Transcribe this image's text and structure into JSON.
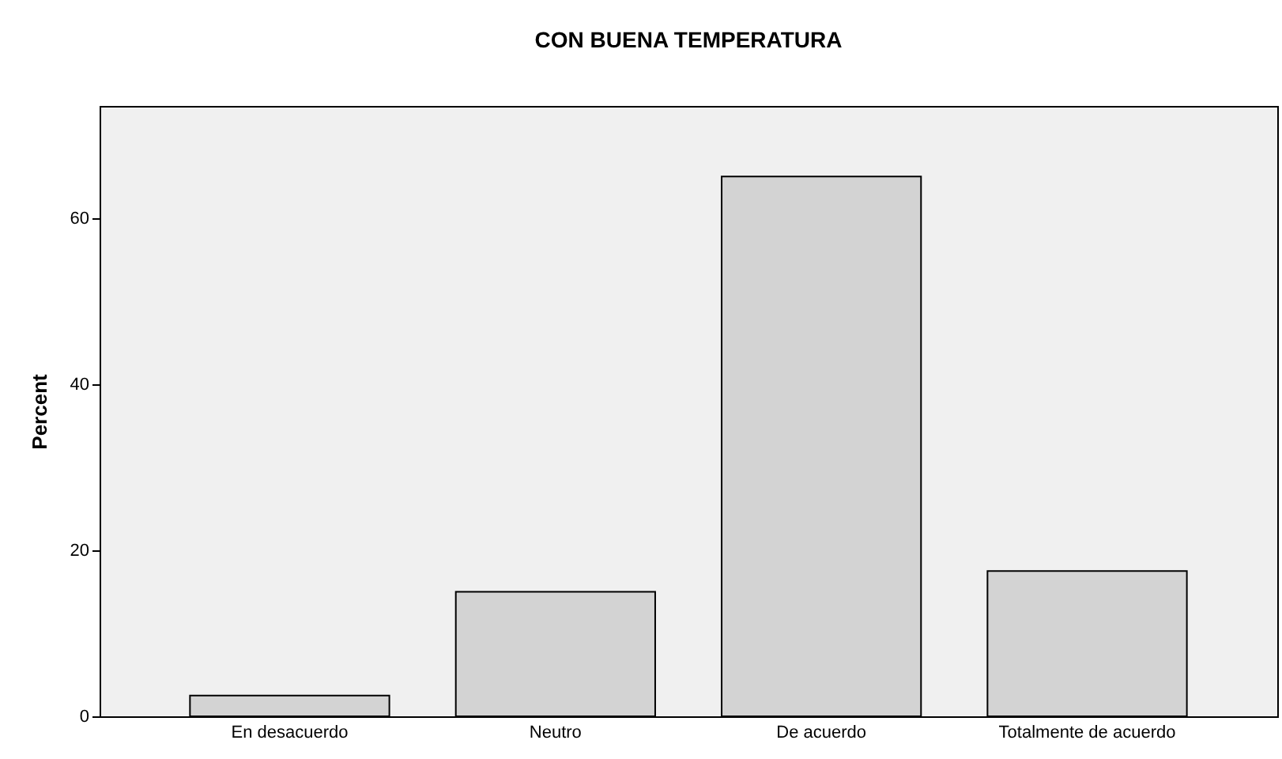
{
  "chart_data": {
    "type": "bar",
    "title": "CON BUENA TEMPERATURA",
    "ylabel": "Percent",
    "categories": [
      "En desacuerdo",
      "Neutro",
      "De acuerdo",
      "Totalmente de acuerdo"
    ],
    "values": [
      2.5,
      15.0,
      65.0,
      17.5
    ],
    "color": "#d3d3d3",
    "ylim": [
      0,
      73.5
    ],
    "yticks": [
      0,
      20,
      40,
      60
    ],
    "grid": false
  }
}
